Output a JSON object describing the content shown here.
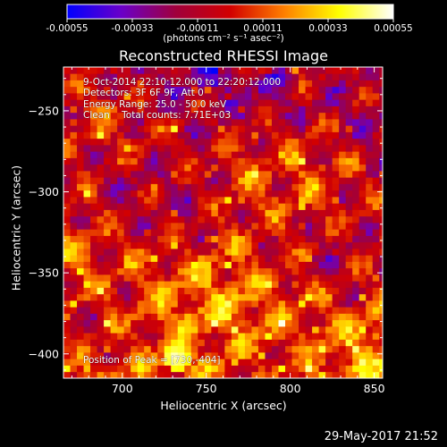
{
  "window": {
    "title": "Reconstructed RHESSI Image",
    "footer_date": "29-May-2017 21:52"
  },
  "colorbar": {
    "units": "(photons cm⁻² s⁻¹ asec⁻²)",
    "tick_labels": [
      "-0.00055",
      "-0.00033",
      "-0.00011",
      "0.00011",
      "0.00033",
      "0.00055"
    ],
    "range": [
      -0.00055,
      0.00055
    ],
    "palette": [
      "#0000ff",
      "#6a00c8",
      "#a0003c",
      "#d20000",
      "#ff8000",
      "#ffff00",
      "#ffffff"
    ]
  },
  "info": {
    "time_range": "9-Oct-2014 22:10:12.000 to 22:20:12.000",
    "detectors": "Detectors: 3F 6F 9F, Att 0",
    "energy": "Energy Range: 25.0 - 50.0 keV",
    "clean_counts": "Clean    Total counts: 7.71E+03"
  },
  "peak": {
    "text": "Position of Peak = [730,-404]",
    "x": 730,
    "y": -404
  },
  "chart_data": {
    "type": "heatmap",
    "title": "Reconstructed RHESSI Image",
    "xlabel": "Heliocentric X (arcsec)",
    "ylabel": "Heliocentric Y (arcsec)",
    "xlim": [
      665,
      855
    ],
    "ylim": [
      -415,
      -223
    ],
    "x_ticks": [
      700,
      750,
      800,
      850
    ],
    "y_ticks": [
      -250,
      -300,
      -350,
      -400
    ],
    "grid": false,
    "pixel_arcsec": 4,
    "value_range": [
      -0.00055,
      0.00055
    ],
    "peak_position": [
      730,
      -404
    ]
  }
}
